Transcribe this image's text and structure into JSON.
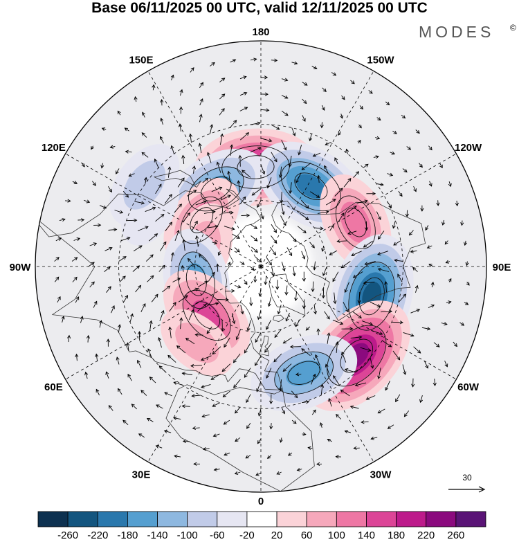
{
  "map": {
    "title": "Base 06/11/2025 00 UTC, valid 12/11/2025 00 UTC",
    "brand": "MODES",
    "brand_mark": "©",
    "projection": "north-polar-stereographic",
    "longitude_labels": [
      {
        "id": "180",
        "text": "180",
        "lon": 180
      },
      {
        "id": "150w",
        "text": "150W",
        "lon": -150
      },
      {
        "id": "150e",
        "text": "150E",
        "lon": 150
      },
      {
        "id": "120w",
        "text": "120W",
        "lon": -120
      },
      {
        "id": "120e",
        "text": "120E",
        "lon": 120
      },
      {
        "id": "90w",
        "text": "90W",
        "lon": -90
      },
      {
        "id": "90e",
        "text": "90E",
        "lon": 90
      },
      {
        "id": "60w",
        "text": "60W",
        "lon": -60
      },
      {
        "id": "60e",
        "text": "60E",
        "lon": 60
      },
      {
        "id": "30w",
        "text": "30W",
        "lon": -30
      },
      {
        "id": "30e",
        "text": "30E",
        "lon": 30
      },
      {
        "id": "0",
        "text": "0",
        "lon": 0
      }
    ],
    "reference_vector": {
      "label": "30"
    },
    "colorbar": {
      "ticks": [
        "-260",
        "-220",
        "-180",
        "-140",
        "-100",
        "-60",
        "-20",
        "20",
        "60",
        "100",
        "140",
        "180",
        "220",
        "260"
      ],
      "colors": [
        "#0d3150",
        "#13557f",
        "#2a78ad",
        "#559fd0",
        "#8eb8e0",
        "#c1cbe8",
        "#e6e6f2",
        "#ffffff",
        "#fbd3d8",
        "#f6a8bb",
        "#ee77a4",
        "#dc4597",
        "#bd1b8b",
        "#8b0a7e",
        "#5a1476"
      ]
    },
    "anomaly_centers": [
      {
        "id": "pos-nw-pacific",
        "lon": 177,
        "lat": 46,
        "value": 215
      },
      {
        "id": "neg-bering",
        "lon": -148,
        "lat": 48,
        "value": -200
      },
      {
        "id": "neg-kamchatka",
        "lon": 150,
        "lat": 50,
        "value": -160
      },
      {
        "id": "pos-gulf-alaska",
        "lon": -115,
        "lat": 44,
        "value": 130
      },
      {
        "id": "neg-hudson",
        "lon": -75,
        "lat": 40,
        "value": -230
      },
      {
        "id": "pos-labrador",
        "lon": -47,
        "lat": 34,
        "value": 245
      },
      {
        "id": "neg-n-atlantic",
        "lon": -22,
        "lat": 40,
        "value": -170
      },
      {
        "id": "pos-siberia-e",
        "lon": 128,
        "lat": 56,
        "value": 110
      },
      {
        "id": "pos-siberia-c",
        "lon": 108,
        "lat": 62,
        "value": 90
      },
      {
        "id": "neg-w-siberia",
        "lon": 78,
        "lat": 60,
        "value": -140
      },
      {
        "id": "pos-scandinavia",
        "lon": 48,
        "lat": 57,
        "value": 150
      },
      {
        "id": "pos-e-europe",
        "lon": 40,
        "lat": 46,
        "value": 60
      },
      {
        "id": "neg-china",
        "lon": 118,
        "lat": 36,
        "value": -50
      },
      {
        "id": "neg-alaska-small",
        "lon": 125,
        "lat": 30,
        "value": -90
      }
    ]
  }
}
